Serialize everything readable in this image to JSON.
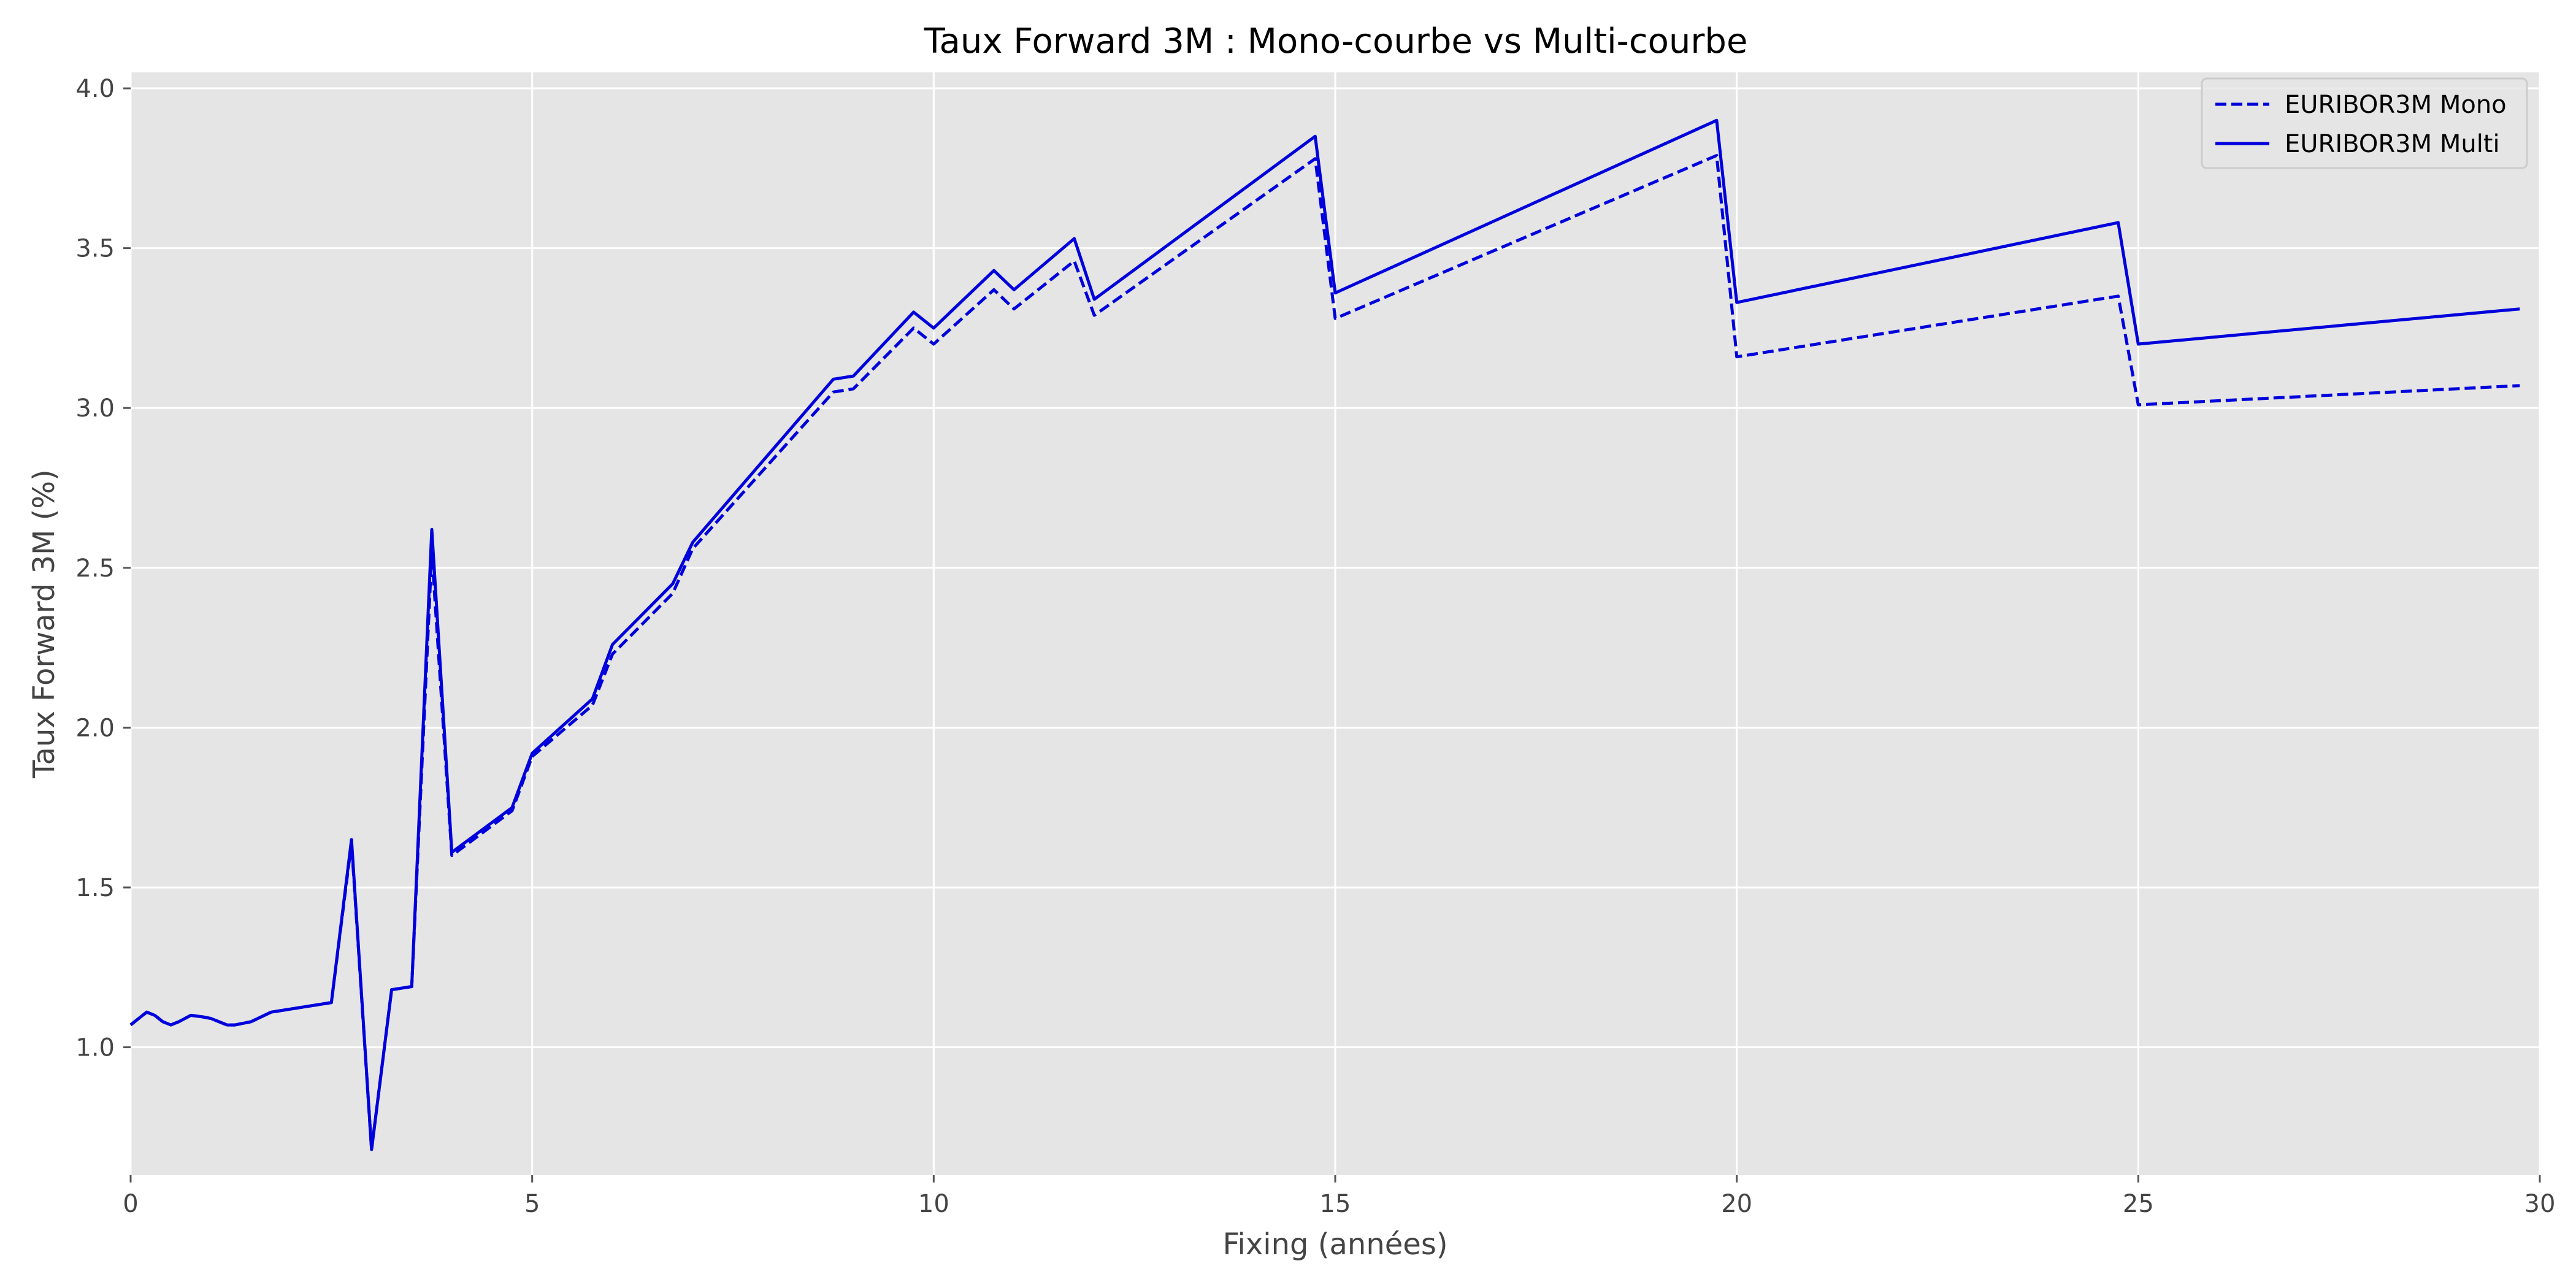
{
  "chart_data": {
    "type": "line",
    "title": "Taux Forward 3M : Mono-courbe vs Multi-courbe",
    "xlabel": "Fixing (années)",
    "ylabel": "Taux Forward 3M (%)",
    "xlim": [
      0,
      30
    ],
    "ylim": [
      0.6,
      4.05
    ],
    "xticks": [
      0,
      5,
      10,
      15,
      20,
      25,
      30
    ],
    "yticks": [
      1.0,
      1.5,
      2.0,
      2.5,
      3.0,
      3.5,
      4.0
    ],
    "grid": true,
    "legend_position": "top-right",
    "background_color": "#e5e5e5",
    "series_color": "#0000dd",
    "series": [
      {
        "name": "EURIBOR3M Mono",
        "style": "dashed",
        "points": [
          [
            0,
            1.07
          ],
          [
            0.1,
            1.09
          ],
          [
            0.2,
            1.11
          ],
          [
            0.3,
            1.1
          ],
          [
            0.4,
            1.08
          ],
          [
            0.5,
            1.07
          ],
          [
            0.6,
            1.08
          ],
          [
            0.75,
            1.1
          ],
          [
            0.9,
            1.095
          ],
          [
            1.0,
            1.09
          ],
          [
            1.2,
            1.07
          ],
          [
            1.3,
            1.07
          ],
          [
            1.5,
            1.08
          ],
          [
            1.75,
            1.11
          ],
          [
            2.0,
            1.12
          ],
          [
            2.25,
            1.13
          ],
          [
            2.5,
            1.14
          ],
          [
            2.75,
            1.64
          ],
          [
            3.0,
            0.68
          ],
          [
            3.25,
            1.18
          ],
          [
            3.5,
            1.19
          ],
          [
            3.75,
            2.55
          ],
          [
            4.0,
            1.6
          ],
          [
            4.75,
            1.74
          ],
          [
            5.0,
            1.91
          ],
          [
            5.75,
            2.07
          ],
          [
            6.0,
            2.23
          ],
          [
            6.75,
            2.42
          ],
          [
            7.0,
            2.56
          ],
          [
            8.75,
            3.05
          ],
          [
            9.0,
            3.06
          ],
          [
            9.75,
            3.25
          ],
          [
            10.0,
            3.2
          ],
          [
            10.75,
            3.37
          ],
          [
            11.0,
            3.31
          ],
          [
            11.75,
            3.46
          ],
          [
            12.0,
            3.29
          ],
          [
            14.75,
            3.78
          ],
          [
            15.0,
            3.28
          ],
          [
            19.75,
            3.79
          ],
          [
            20.0,
            3.16
          ],
          [
            24.75,
            3.35
          ],
          [
            25.0,
            3.01
          ],
          [
            29.75,
            3.07
          ]
        ]
      },
      {
        "name": "EURIBOR3M Multi",
        "style": "solid",
        "points": [
          [
            0,
            1.07
          ],
          [
            0.1,
            1.09
          ],
          [
            0.2,
            1.11
          ],
          [
            0.3,
            1.1
          ],
          [
            0.4,
            1.08
          ],
          [
            0.5,
            1.07
          ],
          [
            0.6,
            1.08
          ],
          [
            0.75,
            1.1
          ],
          [
            0.9,
            1.095
          ],
          [
            1.0,
            1.09
          ],
          [
            1.2,
            1.07
          ],
          [
            1.3,
            1.07
          ],
          [
            1.5,
            1.08
          ],
          [
            1.75,
            1.11
          ],
          [
            2.0,
            1.12
          ],
          [
            2.25,
            1.13
          ],
          [
            2.5,
            1.14
          ],
          [
            2.75,
            1.65
          ],
          [
            3.0,
            0.68
          ],
          [
            3.25,
            1.18
          ],
          [
            3.5,
            1.19
          ],
          [
            3.75,
            2.62
          ],
          [
            4.0,
            1.61
          ],
          [
            4.75,
            1.75
          ],
          [
            5.0,
            1.92
          ],
          [
            5.75,
            2.09
          ],
          [
            6.0,
            2.26
          ],
          [
            6.75,
            2.45
          ],
          [
            7.0,
            2.58
          ],
          [
            8.75,
            3.09
          ],
          [
            9.0,
            3.1
          ],
          [
            9.75,
            3.3
          ],
          [
            10.0,
            3.25
          ],
          [
            10.75,
            3.43
          ],
          [
            11.0,
            3.37
          ],
          [
            11.75,
            3.53
          ],
          [
            12.0,
            3.34
          ],
          [
            14.75,
            3.85
          ],
          [
            15.0,
            3.36
          ],
          [
            19.75,
            3.9
          ],
          [
            20.0,
            3.33
          ],
          [
            24.75,
            3.58
          ],
          [
            25.0,
            3.2
          ],
          [
            29.75,
            3.31
          ]
        ]
      }
    ]
  }
}
